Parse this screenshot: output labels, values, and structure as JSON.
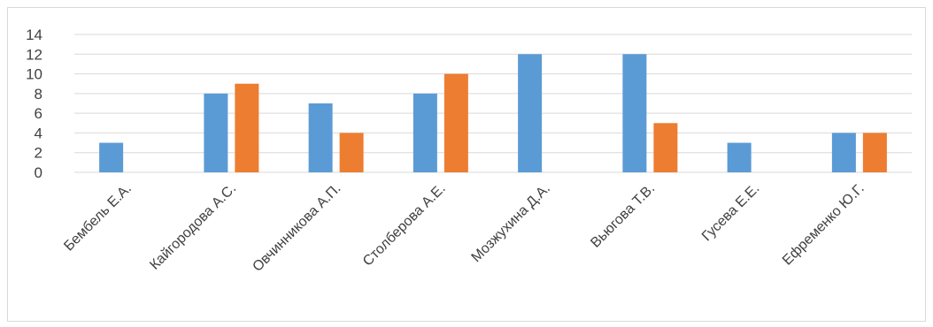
{
  "chart_data": {
    "type": "bar",
    "title": "",
    "xlabel": "",
    "ylabel": "",
    "ylim": [
      0,
      14
    ],
    "yticks": [
      0,
      2,
      4,
      6,
      8,
      10,
      12,
      14
    ],
    "grid": true,
    "legend": "none",
    "categories": [
      "Бембель Е.А.",
      "Кайгородова А.С.",
      "Овчинникова А.П.",
      "Столберова А.Е.",
      "Мозжухина Д.А.",
      "Вьюгова Т.В.",
      "Гусева Е.Е.",
      "Ефременко Ю.Г."
    ],
    "series": [
      {
        "values": [
          3,
          8,
          7,
          8,
          12,
          12,
          3,
          4
        ],
        "color": "#5B9BD5"
      },
      {
        "values": [
          0,
          9,
          4,
          10,
          0,
          5,
          0,
          4
        ],
        "color": "#ED7D31"
      }
    ]
  }
}
